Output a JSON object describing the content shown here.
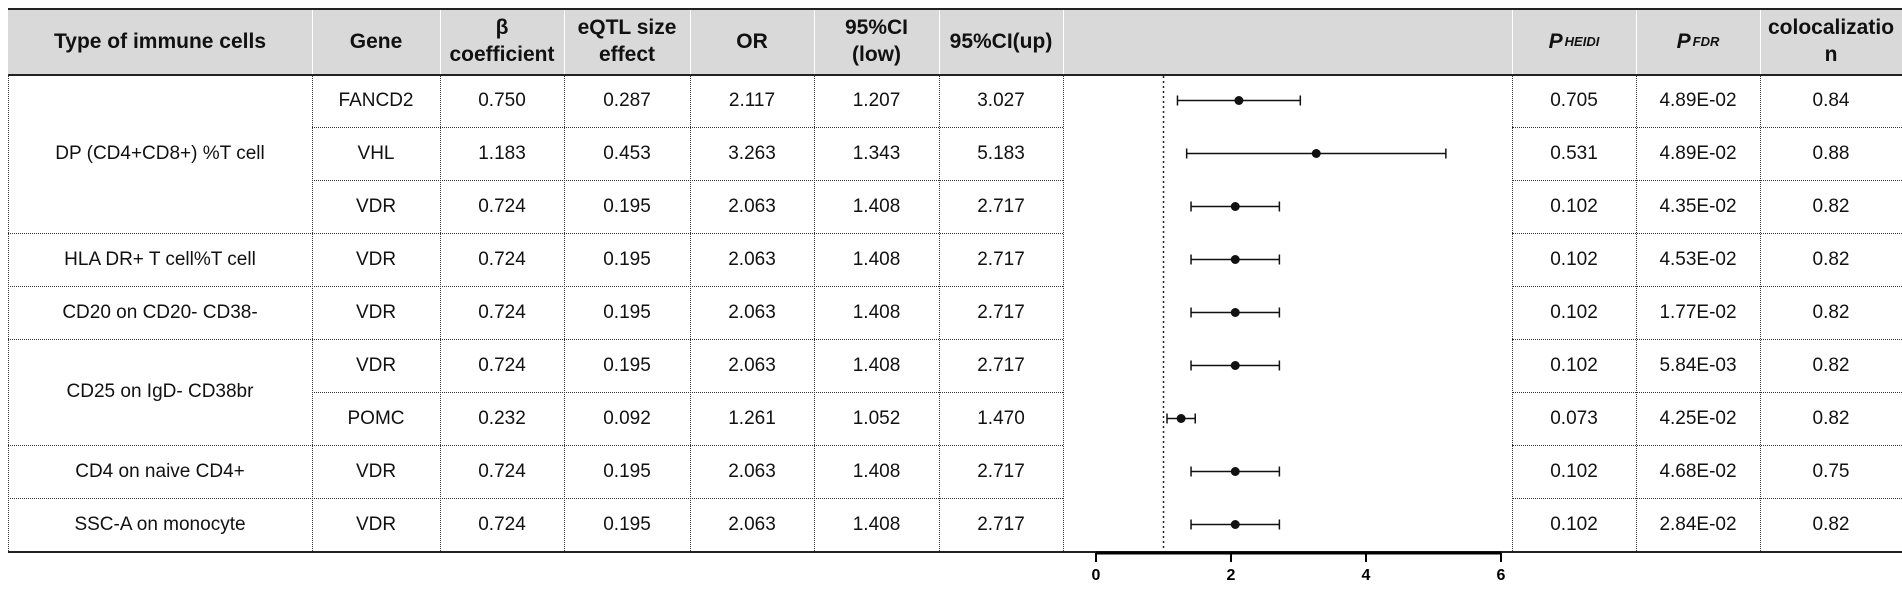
{
  "header": {
    "cell_type": "Type of immune cells",
    "gene": "Gene",
    "beta": "β coefficient",
    "eqtl": "eQTL size effect",
    "or": "OR",
    "ci_low": "95%CI (low)",
    "ci_up": "95%CI(up)",
    "p_heidi": "P",
    "p_heidi_sub": "HEIDI",
    "p_fdr": "P",
    "p_fdr_sub": "FDR",
    "coloc": "colocalization"
  },
  "groups": [
    {
      "cell_type": "DP (CD4+CD8+) %T cell",
      "rows": [
        0,
        1,
        2
      ]
    },
    {
      "cell_type": "HLA DR+ T cell%T cell",
      "rows": [
        3
      ]
    },
    {
      "cell_type": "CD20 on CD20- CD38-",
      "rows": [
        4
      ]
    },
    {
      "cell_type": "CD25 on IgD- CD38br",
      "rows": [
        5,
        6
      ]
    },
    {
      "cell_type": "CD4 on naive CD4+",
      "rows": [
        7
      ]
    },
    {
      "cell_type": "SSC-A on monocyte",
      "rows": [
        8
      ]
    }
  ],
  "rows": [
    {
      "gene": "FANCD2",
      "beta": "0.750",
      "eqtl": "0.287",
      "or": "2.117",
      "ci_low": "1.207",
      "ci_up": "3.027",
      "p_heidi": "0.705",
      "p_fdr": "4.89E-02",
      "coloc": "0.84"
    },
    {
      "gene": "VHL",
      "beta": "1.183",
      "eqtl": "0.453",
      "or": "3.263",
      "ci_low": "1.343",
      "ci_up": "5.183",
      "p_heidi": "0.531",
      "p_fdr": "4.89E-02",
      "coloc": "0.88"
    },
    {
      "gene": "VDR",
      "beta": "0.724",
      "eqtl": "0.195",
      "or": "2.063",
      "ci_low": "1.408",
      "ci_up": "2.717",
      "p_heidi": "0.102",
      "p_fdr": "4.35E-02",
      "coloc": "0.82"
    },
    {
      "gene": "VDR",
      "beta": "0.724",
      "eqtl": "0.195",
      "or": "2.063",
      "ci_low": "1.408",
      "ci_up": "2.717",
      "p_heidi": "0.102",
      "p_fdr": "4.53E-02",
      "coloc": "0.82"
    },
    {
      "gene": "VDR",
      "beta": "0.724",
      "eqtl": "0.195",
      "or": "2.063",
      "ci_low": "1.408",
      "ci_up": "2.717",
      "p_heidi": "0.102",
      "p_fdr": "1.77E-02",
      "coloc": "0.82"
    },
    {
      "gene": "VDR",
      "beta": "0.724",
      "eqtl": "0.195",
      "or": "2.063",
      "ci_low": "1.408",
      "ci_up": "2.717",
      "p_heidi": "0.102",
      "p_fdr": "5.84E-03",
      "coloc": "0.82"
    },
    {
      "gene": "POMC",
      "beta": "0.232",
      "eqtl": "0.092",
      "or": "1.261",
      "ci_low": "1.052",
      "ci_up": "1.470",
      "p_heidi": "0.073",
      "p_fdr": "4.25E-02",
      "coloc": "0.82"
    },
    {
      "gene": "VDR",
      "beta": "0.724",
      "eqtl": "0.195",
      "or": "2.063",
      "ci_low": "1.408",
      "ci_up": "2.717",
      "p_heidi": "0.102",
      "p_fdr": "4.68E-02",
      "coloc": "0.75"
    },
    {
      "gene": "VDR",
      "beta": "0.724",
      "eqtl": "0.195",
      "or": "2.063",
      "ci_low": "1.408",
      "ci_up": "2.717",
      "p_heidi": "0.102",
      "p_fdr": "2.84E-02",
      "coloc": "0.82"
    }
  ],
  "chart_data": {
    "type": "scatter",
    "title": "",
    "xlabel": "",
    "ylabel": "",
    "xlim": [
      0,
      6
    ],
    "xticks": [
      0,
      2,
      4,
      6
    ],
    "xtick_labels": [
      "0",
      "2",
      "4",
      "6"
    ],
    "reference_line_x": 1,
    "grid": false,
    "points": [
      {
        "or": 2.117,
        "low": 1.207,
        "up": 3.027
      },
      {
        "or": 3.263,
        "low": 1.343,
        "up": 5.183
      },
      {
        "or": 2.063,
        "low": 1.408,
        "up": 2.717
      },
      {
        "or": 2.063,
        "low": 1.408,
        "up": 2.717
      },
      {
        "or": 2.063,
        "low": 1.408,
        "up": 2.717
      },
      {
        "or": 2.063,
        "low": 1.408,
        "up": 2.717
      },
      {
        "or": 1.261,
        "low": 1.052,
        "up": 1.47
      },
      {
        "or": 2.063,
        "low": 1.408,
        "up": 2.717
      },
      {
        "or": 2.063,
        "low": 1.408,
        "up": 2.717
      }
    ]
  }
}
